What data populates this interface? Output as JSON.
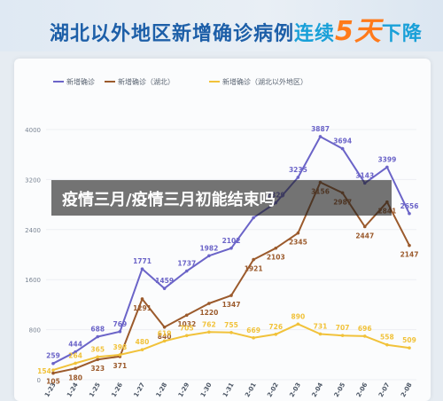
{
  "banner": {
    "headline_a": "湖北以外地区新增确诊病例",
    "headline_b": "连续",
    "headline_c": "5天",
    "headline_d": "下降"
  },
  "overlay_caption": "疫情三月/疫情三月初能结束吗",
  "colors": {
    "blue": "#6b64c8",
    "brown": "#9b5a2c",
    "yellow": "#f1c23a",
    "grid": "#eceff3",
    "banner_text": "#1d5fa8",
    "accent": "#ff7a1a"
  },
  "chart_data": {
    "type": "line",
    "categories": [
      "1-23",
      "1-24",
      "1-25",
      "1-26",
      "1-27",
      "1-28",
      "1-29",
      "1-30",
      "1-31",
      "2-01",
      "2-02",
      "2-03",
      "2-04",
      "2-05",
      "2-06",
      "2-07",
      "2-08"
    ],
    "ylim": [
      0,
      4000
    ],
    "yticks": [
      0,
      800,
      1600,
      2400,
      3200,
      4000
    ],
    "grid": true,
    "legend_position": "top-left",
    "series": [
      {
        "name": "新增确诊",
        "color": "#6b64c8",
        "values": [
          259,
          444,
          688,
          769,
          1771,
          1459,
          1737,
          1982,
          2102,
          2590,
          2829,
          3235,
          3887,
          3694,
          3143,
          3399,
          2656
        ],
        "labels": [
          "259",
          "444",
          "688",
          "769",
          "1771",
          "1459",
          "1737",
          "1982",
          "2102",
          "",
          "2829",
          "3235",
          "3887",
          "3694",
          "3143",
          "3399",
          "2656"
        ]
      },
      {
        "name": "新增确诊（湖北）",
        "color": "#9b5a2c",
        "values": [
          105,
          180,
          323,
          371,
          1291,
          840,
          1032,
          1220,
          1347,
          1921,
          2103,
          2345,
          3156,
          2987,
          2447,
          2841,
          2147
        ],
        "labels": [
          "105",
          "180",
          "323",
          "371",
          "1291",
          "840",
          "1032",
          "1220",
          "1347",
          "1921",
          "2103",
          "2345",
          "3156",
          "2987",
          "2447",
          "2841",
          "2147"
        ]
      },
      {
        "name": "新增确诊（湖北以外地区）",
        "color": "#f1c23a",
        "values": [
          154,
          264,
          365,
          398,
          480,
          619,
          705,
          762,
          755,
          669,
          726,
          890,
          731,
          707,
          696,
          558,
          509
        ],
        "labels": [
          "154",
          "264",
          "365",
          "398",
          "480",
          "619",
          "705",
          "762",
          "755",
          "669",
          "726",
          "890",
          "731",
          "707",
          "696",
          "558",
          "509"
        ]
      }
    ]
  }
}
